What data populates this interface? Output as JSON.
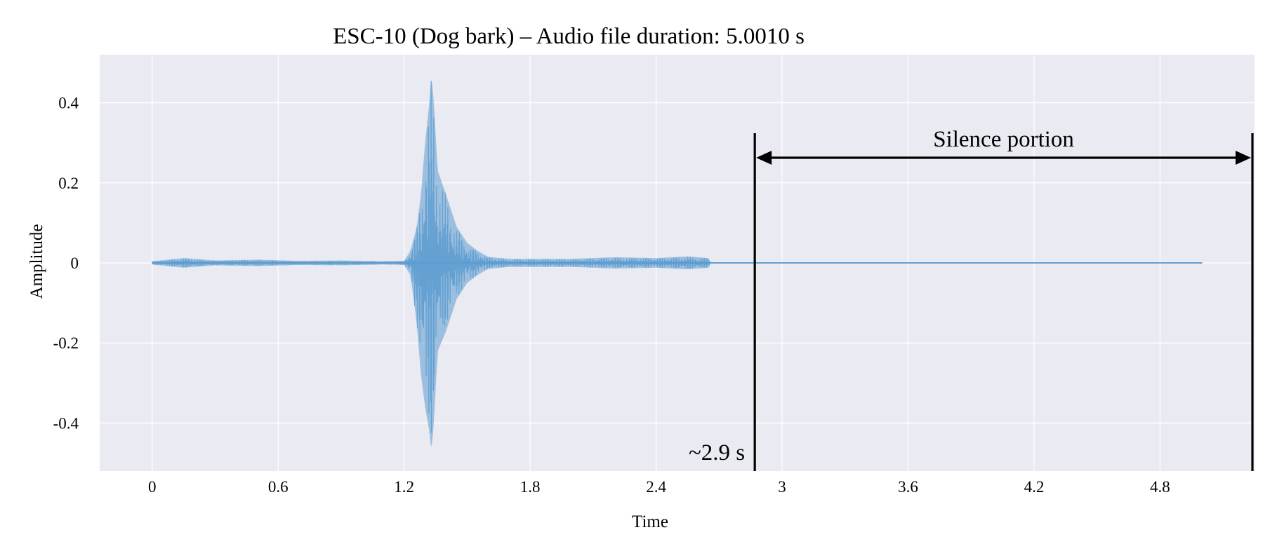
{
  "chart_data": {
    "type": "line",
    "title": "ESC-10 (Dog bark) – Audio file duration: 5.0010 s",
    "xlabel": "Time",
    "ylabel": "Amplitude",
    "xlim": [
      -0.25,
      5.25
    ],
    "ylim": [
      -0.52,
      0.52
    ],
    "xticks": [
      0,
      0.6,
      1.2,
      1.8,
      2.4,
      3,
      3.6,
      4.2,
      4.8
    ],
    "xtick_labels": [
      "0",
      "0.6",
      "1.2",
      "1.8",
      "2.4",
      "3",
      "3.6",
      "4.2",
      "4.8"
    ],
    "yticks": [
      0.4,
      0.2,
      0,
      -0.2,
      -0.4
    ],
    "ytick_labels": [
      "0.4",
      "0.2",
      "0",
      "-0.2",
      "-0.4"
    ],
    "grid": true,
    "series": [
      {
        "color": "#5b9bd0",
        "duration_s": 5.001,
        "envelope": {
          "t": [
            0,
            0.15,
            0.3,
            0.5,
            0.7,
            0.9,
            1.1,
            1.2,
            1.23,
            1.26,
            1.28,
            1.3,
            1.32,
            1.33,
            1.34,
            1.36,
            1.4,
            1.45,
            1.5,
            1.55,
            1.6,
            1.7,
            1.8,
            2.0,
            2.2,
            2.4,
            2.55,
            2.65,
            2.66,
            5.001
          ],
          "max": [
            0.004,
            0.012,
            0.006,
            0.008,
            0.005,
            0.006,
            0.004,
            0.005,
            0.03,
            0.09,
            0.17,
            0.3,
            0.4,
            0.47,
            0.41,
            0.23,
            0.17,
            0.09,
            0.05,
            0.03,
            0.015,
            0.01,
            0.01,
            0.01,
            0.014,
            0.012,
            0.016,
            0.012,
            0.0,
            0.0
          ],
          "min": [
            -0.004,
            -0.012,
            -0.006,
            -0.008,
            -0.005,
            -0.006,
            -0.004,
            -0.005,
            -0.03,
            -0.15,
            -0.28,
            -0.36,
            -0.42,
            -0.47,
            -0.41,
            -0.22,
            -0.17,
            -0.09,
            -0.05,
            -0.03,
            -0.015,
            -0.01,
            -0.01,
            -0.01,
            -0.014,
            -0.012,
            -0.016,
            -0.012,
            0.0,
            0.0
          ]
        }
      }
    ],
    "annotations": [
      {
        "type": "vline",
        "x": 2.87,
        "label": "~2.9 s"
      },
      {
        "type": "vline",
        "x": 5.24
      },
      {
        "type": "double-arrow",
        "x_start": 2.87,
        "x_end": 5.24,
        "label": "Silence portion"
      }
    ],
    "colors": {
      "plot_background": "#eaeaf2",
      "grid": "#ffffff",
      "waveform": "#5b9bd0",
      "annotation": "#000000"
    }
  }
}
